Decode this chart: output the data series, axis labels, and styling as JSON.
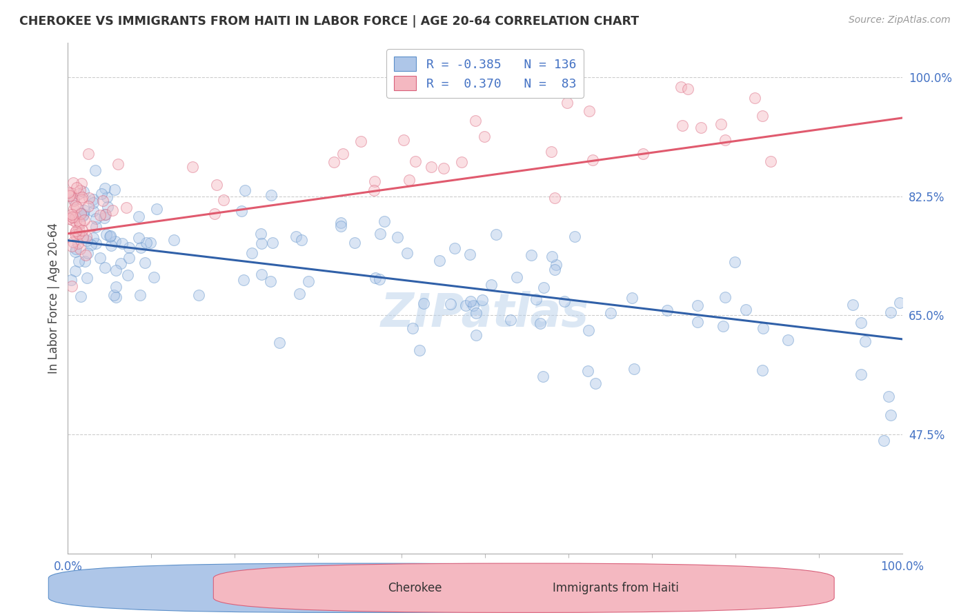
{
  "title": "CHEROKEE VS IMMIGRANTS FROM HAITI IN LABOR FORCE | AGE 20-64 CORRELATION CHART",
  "source": "Source: ZipAtlas.com",
  "ylabel": "In Labor Force | Age 20-64",
  "xlim": [
    0.0,
    1.0
  ],
  "ylim": [
    0.3,
    1.05
  ],
  "ytick_vals": [
    1.0,
    0.825,
    0.65,
    0.475
  ],
  "ytick_labels": [
    "100.0%",
    "82.5%",
    "65.0%",
    "47.5%"
  ],
  "xtick_vals": [
    0.0,
    1.0
  ],
  "xtick_labels": [
    "0.0%",
    "100.0%"
  ],
  "blue_line_y_start": 0.76,
  "blue_line_y_end": 0.615,
  "pink_line_y_start": 0.77,
  "pink_line_y_end": 0.94,
  "scatter_size": 130,
  "scatter_alpha": 0.45,
  "blue_color": "#aec6e8",
  "blue_edge": "#5b8fc9",
  "pink_color": "#f4b8c1",
  "pink_edge": "#d9607a",
  "blue_line_color": "#3060a8",
  "pink_line_color": "#e05a6e",
  "grid_color": "#cccccc",
  "background_color": "#ffffff",
  "watermark": "ZIPatlas",
  "legend_blue_label": "R = -0.385   N = 136",
  "legend_pink_label": "R =  0.370   N =  83",
  "bottom_label_blue": "Cherokee",
  "bottom_label_pink": "Immigrants from Haiti"
}
